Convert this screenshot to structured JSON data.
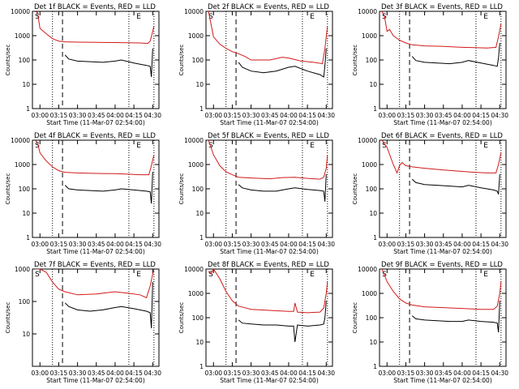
{
  "chart_data": [
    {
      "type": "line",
      "title": "Det 1f BLACK = Events, RED = LLD",
      "title_prefix": "Det 1f",
      "xlabel": "Start Time (11-Mar-07 02:54:00)",
      "ylabel": "Counts/sec",
      "x_ticks": [
        "03:00",
        "03:15",
        "03:30",
        "03:45",
        "04:00",
        "04:15",
        "04:30"
      ],
      "y_ticks": [
        "1",
        "10",
        "100",
        "1000",
        "10000"
      ],
      "y_scale": "log",
      "xlim": [
        "02:54",
        "04:35"
      ],
      "ylim": [
        1,
        10000
      ],
      "markers": [
        "S",
        "E"
      ],
      "markers_x": [
        "02:56",
        "04:17"
      ],
      "dotted_lines_x": [
        "03:10",
        "04:11",
        "04:31"
      ],
      "dashed_lines_x": [
        "03:18"
      ],
      "series": [
        {
          "color": "#d11a1a",
          "x": [
            "02:56",
            "02:58",
            "03:00",
            "03:05",
            "03:10",
            "03:15",
            "03:20",
            "03:30",
            "03:45",
            "04:00",
            "04:10",
            "04:20",
            "04:26",
            "04:28",
            "04:30",
            "04:31"
          ],
          "values": [
            10000,
            9000,
            2000,
            1200,
            750,
            600,
            560,
            540,
            530,
            520,
            510,
            500,
            480,
            600,
            1500,
            2500
          ]
        },
        {
          "color": "#000000",
          "x": [
            "03:20",
            "03:23",
            "03:30",
            "03:40",
            "03:50",
            "04:00",
            "04:05",
            "04:15",
            "04:25",
            "04:28",
            "04:29",
            "04:30"
          ],
          "values": [
            160,
            110,
            90,
            85,
            80,
            90,
            100,
            75,
            60,
            55,
            20,
            300
          ]
        }
      ]
    },
    {
      "type": "line",
      "title": "Det 2f BLACK = Events, RED = LLD",
      "title_prefix": "Det 2f",
      "xlabel": "Start Time (11-Mar-07 02:54:00)",
      "ylabel": "Counts/sec",
      "x_ticks": [
        "03:00",
        "03:15",
        "03:30",
        "03:45",
        "04:00",
        "04:15",
        "04:30"
      ],
      "y_ticks": [
        "1",
        "10",
        "100",
        "1000",
        "10000"
      ],
      "y_scale": "log",
      "xlim": [
        "02:54",
        "04:35"
      ],
      "ylim": [
        1,
        10000
      ],
      "markers": [
        "S",
        "E"
      ],
      "markers_x": [
        "02:56",
        "04:17"
      ],
      "dotted_lines_x": [
        "03:10",
        "04:11",
        "04:31"
      ],
      "dashed_lines_x": [
        "03:18"
      ],
      "series": [
        {
          "color": "#d11a1a",
          "x": [
            "02:56",
            "03:00",
            "03:05",
            "03:10",
            "03:15",
            "03:20",
            "03:25",
            "03:30",
            "03:45",
            "03:55",
            "04:00",
            "04:10",
            "04:20",
            "04:27",
            "04:29",
            "04:31"
          ],
          "values": [
            10000,
            900,
            450,
            300,
            220,
            180,
            140,
            100,
            100,
            130,
            120,
            90,
            80,
            70,
            300,
            2500
          ]
        },
        {
          "color": "#000000",
          "x": [
            "03:20",
            "03:23",
            "03:30",
            "03:40",
            "03:50",
            "04:00",
            "04:05",
            "04:15",
            "04:25",
            "04:28",
            "04:29",
            "04:30"
          ],
          "values": [
            80,
            50,
            35,
            30,
            35,
            50,
            55,
            35,
            25,
            20,
            60,
            300
          ]
        }
      ]
    },
    {
      "type": "line",
      "title": "Det 3f BLACK = Events, RED = LLD",
      "title_prefix": "Det 3f",
      "xlabel": "Start Time (11-Mar-07 02:54:00)",
      "ylabel": "Counts/sec",
      "x_ticks": [
        "03:00",
        "03:15",
        "03:30",
        "03:45",
        "04:00",
        "04:15",
        "04:30"
      ],
      "y_ticks": [
        "1",
        "10",
        "100",
        "1000",
        "10000"
      ],
      "y_scale": "log",
      "xlim": [
        "02:54",
        "04:35"
      ],
      "ylim": [
        1,
        10000
      ],
      "markers": [
        "S",
        "E"
      ],
      "markers_x": [
        "02:56",
        "04:17"
      ],
      "dotted_lines_x": [
        "03:10",
        "04:11",
        "04:31"
      ],
      "dashed_lines_x": [
        "03:18"
      ],
      "series": [
        {
          "color": "#d11a1a",
          "x": [
            "02:56",
            "02:58",
            "03:00",
            "03:02",
            "03:05",
            "03:10",
            "03:15",
            "03:20",
            "03:30",
            "03:45",
            "04:00",
            "04:10",
            "04:20",
            "04:27",
            "04:29",
            "04:31"
          ],
          "values": [
            10000,
            6000,
            1500,
            1800,
            1000,
            650,
            500,
            420,
            380,
            360,
            330,
            320,
            310,
            330,
            900,
            3000
          ]
        },
        {
          "color": "#000000",
          "x": [
            "03:20",
            "03:23",
            "03:30",
            "03:40",
            "03:50",
            "04:00",
            "04:05",
            "04:15",
            "04:25",
            "04:28",
            "04:29",
            "04:30"
          ],
          "values": [
            140,
            95,
            80,
            75,
            70,
            80,
            95,
            75,
            60,
            55,
            120,
            500
          ]
        }
      ]
    },
    {
      "type": "line",
      "title": "Det 4f BLACK = Events, RED = LLD",
      "title_prefix": "Det 4f",
      "xlabel": "Start Time (11-Mar-07 02:54:00)",
      "ylabel": "Counts/sec",
      "x_ticks": [
        "03:00",
        "03:15",
        "03:30",
        "03:45",
        "04:00",
        "04:15",
        "04:30"
      ],
      "y_ticks": [
        "1",
        "10",
        "100",
        "1000",
        "10000"
      ],
      "y_scale": "log",
      "xlim": [
        "02:54",
        "04:35"
      ],
      "ylim": [
        1,
        10000
      ],
      "markers": [
        "S",
        "E"
      ],
      "markers_x": [
        "02:56",
        "04:17"
      ],
      "dotted_lines_x": [
        "03:10",
        "04:11",
        "04:31"
      ],
      "dashed_lines_x": [
        "03:18"
      ],
      "series": [
        {
          "color": "#d11a1a",
          "x": [
            "02:56",
            "02:58",
            "03:00",
            "03:05",
            "03:10",
            "03:15",
            "03:20",
            "03:30",
            "03:45",
            "04:00",
            "04:10",
            "04:20",
            "04:27",
            "04:29",
            "04:31"
          ],
          "values": [
            10000,
            8000,
            3000,
            1400,
            800,
            560,
            480,
            450,
            430,
            420,
            400,
            380,
            380,
            900,
            2500
          ]
        },
        {
          "color": "#000000",
          "x": [
            "03:20",
            "03:23",
            "03:30",
            "03:40",
            "03:50",
            "04:00",
            "04:05",
            "04:15",
            "04:25",
            "04:28",
            "04:29",
            "04:30"
          ],
          "values": [
            140,
            100,
            90,
            85,
            80,
            90,
            100,
            90,
            80,
            75,
            25,
            500
          ]
        }
      ]
    },
    {
      "type": "line",
      "title": "Det 5f BLACK = Events, RED = LLD",
      "title_prefix": "Det 5f",
      "xlabel": "Start Time (11-Mar-07 02:54:00)",
      "ylabel": "Counts/sec",
      "x_ticks": [
        "03:00",
        "03:15",
        "03:30",
        "03:45",
        "04:00",
        "04:15",
        "04:30"
      ],
      "y_ticks": [
        "1",
        "10",
        "100",
        "1000",
        "10000"
      ],
      "y_scale": "log",
      "xlim": [
        "02:54",
        "04:35"
      ],
      "ylim": [
        1,
        10000
      ],
      "markers": [
        "S",
        "E"
      ],
      "markers_x": [
        "02:56",
        "04:17"
      ],
      "dotted_lines_x": [
        "03:10",
        "04:11",
        "04:31"
      ],
      "dashed_lines_x": [
        "03:18"
      ],
      "series": [
        {
          "color": "#d11a1a",
          "x": [
            "02:56",
            "03:00",
            "03:05",
            "03:10",
            "03:15",
            "03:20",
            "03:30",
            "03:45",
            "03:55",
            "04:05",
            "04:15",
            "04:25",
            "04:28",
            "04:30",
            "04:31"
          ],
          "values": [
            10000,
            2500,
            900,
            500,
            380,
            300,
            280,
            260,
            290,
            300,
            270,
            250,
            300,
            700,
            2500
          ]
        },
        {
          "color": "#000000",
          "x": [
            "03:20",
            "03:23",
            "03:30",
            "03:40",
            "03:50",
            "04:00",
            "04:05",
            "04:15",
            "04:25",
            "04:28",
            "04:29",
            "04:30"
          ],
          "values": [
            150,
            110,
            90,
            80,
            80,
            100,
            110,
            95,
            85,
            80,
            30,
            400
          ]
        }
      ]
    },
    {
      "type": "line",
      "title": "Det 6f BLACK = Events, RED = LLD",
      "title_prefix": "Det 6f",
      "xlabel": "Start Time (11-Mar-07 02:54:00)",
      "ylabel": "Counts/sec",
      "x_ticks": [
        "03:00",
        "03:15",
        "03:30",
        "03:45",
        "04:00",
        "04:15",
        "04:30"
      ],
      "y_ticks": [
        "1",
        "10",
        "100",
        "1000",
        "10000"
      ],
      "y_scale": "log",
      "xlim": [
        "02:54",
        "04:35"
      ],
      "ylim": [
        1,
        10000
      ],
      "markers": [
        "S",
        "E"
      ],
      "markers_x": [
        "02:56",
        "04:17"
      ],
      "dotted_lines_x": [
        "03:10",
        "04:11",
        "04:31"
      ],
      "dashed_lines_x": [
        "03:18"
      ],
      "series": [
        {
          "color": "#d11a1a",
          "x": [
            "02:56",
            "03:00",
            "03:05",
            "03:08",
            "03:10",
            "03:12",
            "03:15",
            "03:20",
            "03:30",
            "03:45",
            "04:00",
            "04:10",
            "04:20",
            "04:27",
            "04:29",
            "04:31"
          ],
          "values": [
            10000,
            5000,
            1000,
            450,
            900,
            1200,
            900,
            800,
            700,
            600,
            520,
            480,
            450,
            450,
            1000,
            3000
          ]
        },
        {
          "color": "#000000",
          "x": [
            "03:20",
            "03:23",
            "03:30",
            "03:40",
            "03:50",
            "04:00",
            "04:05",
            "04:15",
            "04:25",
            "04:28",
            "04:29",
            "04:30"
          ],
          "values": [
            250,
            180,
            150,
            140,
            130,
            120,
            140,
            110,
            90,
            80,
            60,
            400
          ]
        }
      ]
    },
    {
      "type": "line",
      "title": "Det 7f BLACK = Events, RED = LLD",
      "title_prefix": "Det 7f",
      "xlabel": "Start Time (11-Mar-07 02:54:00)",
      "ylabel": "Counts/sec",
      "x_ticks": [
        "03:00",
        "03:15",
        "03:30",
        "03:45",
        "04:00",
        "04:15",
        "04:30"
      ],
      "y_ticks": [
        "10",
        "100",
        "1000"
      ],
      "y_scale": "log",
      "xlim": [
        "02:54",
        "04:35"
      ],
      "ylim": [
        1,
        1000
      ],
      "markers": [
        "S",
        "E"
      ],
      "markers_x": [
        "02:56",
        "04:17"
      ],
      "dotted_lines_x": [
        "03:10",
        "04:11",
        "04:31"
      ],
      "dashed_lines_x": [
        "03:18"
      ],
      "series": [
        {
          "color": "#d11a1a",
          "x": [
            "02:56",
            "03:00",
            "03:05",
            "03:10",
            "03:15",
            "03:20",
            "03:30",
            "03:45",
            "04:00",
            "04:10",
            "04:20",
            "04:25",
            "04:28",
            "04:30",
            "04:31"
          ],
          "values": [
            1000,
            1000,
            800,
            400,
            240,
            200,
            160,
            170,
            200,
            180,
            160,
            130,
            300,
            700,
            1000
          ]
        },
        {
          "color": "#000000",
          "x": [
            "03:20",
            "03:23",
            "03:30",
            "03:40",
            "03:50",
            "04:00",
            "04:05",
            "04:15",
            "04:25",
            "04:28",
            "04:29",
            "04:30"
          ],
          "values": [
            90,
            70,
            55,
            50,
            55,
            65,
            70,
            60,
            50,
            45,
            15,
            400
          ]
        }
      ]
    },
    {
      "type": "line",
      "title": "Det 8f BLACK = Events, RED = LLD",
      "title_prefix": "Det 8f",
      "xlabel": "Start Time (11-Mar-07 02:54:00)",
      "ylabel": "Counts/sec",
      "x_ticks": [
        "03:00",
        "03:15",
        "03:30",
        "03:45",
        "04:00",
        "04:15",
        "04:30"
      ],
      "y_ticks": [
        "1",
        "10",
        "100",
        "1000",
        "10000"
      ],
      "y_scale": "log",
      "xlim": [
        "02:54",
        "04:35"
      ],
      "ylim": [
        1,
        10000
      ],
      "markers": [
        "S",
        "E"
      ],
      "markers_x": [
        "02:56",
        "04:17"
      ],
      "dotted_lines_x": [
        "03:10",
        "04:11",
        "04:31"
      ],
      "dashed_lines_x": [
        "03:18"
      ],
      "series": [
        {
          "color": "#d11a1a",
          "x": [
            "02:56",
            "02:58",
            "03:00",
            "03:05",
            "03:10",
            "03:15",
            "03:20",
            "03:30",
            "03:45",
            "04:00",
            "04:04",
            "04:05",
            "04:07",
            "04:15",
            "04:25",
            "04:28",
            "04:30",
            "04:31"
          ],
          "values": [
            8000,
            6500,
            10000,
            4000,
            1200,
            500,
            300,
            220,
            200,
            180,
            180,
            400,
            170,
            160,
            170,
            250,
            1000,
            3000
          ]
        },
        {
          "color": "#000000",
          "x": [
            "03:20",
            "03:23",
            "03:30",
            "03:40",
            "03:50",
            "04:00",
            "04:04",
            "04:05",
            "04:07",
            "04:15",
            "04:25",
            "04:28",
            "04:29",
            "04:30"
          ],
          "values": [
            80,
            60,
            55,
            50,
            50,
            45,
            45,
            10,
            50,
            45,
            50,
            55,
            100,
            500
          ]
        }
      ]
    },
    {
      "type": "line",
      "title": "Det 9f BLACK = Events, RED = LLD",
      "title_prefix": "Det 9f",
      "xlabel": "Start Time (11-Mar-07 02:54:00)",
      "ylabel": "Counts/sec",
      "x_ticks": [
        "03:00",
        "03:15",
        "03:30",
        "03:45",
        "04:00",
        "04:15",
        "04:30"
      ],
      "y_ticks": [
        "1",
        "10",
        "100",
        "1000",
        "10000"
      ],
      "y_scale": "log",
      "xlim": [
        "02:54",
        "04:35"
      ],
      "ylim": [
        1,
        10000
      ],
      "markers": [
        "S",
        "E"
      ],
      "markers_x": [
        "02:56",
        "04:17"
      ],
      "dotted_lines_x": [
        "03:10",
        "04:11",
        "04:31"
      ],
      "dashed_lines_x": [
        "03:18"
      ],
      "series": [
        {
          "color": "#d11a1a",
          "x": [
            "02:56",
            "03:00",
            "03:05",
            "03:10",
            "03:15",
            "03:20",
            "03:30",
            "03:45",
            "04:00",
            "04:15",
            "04:25",
            "04:28",
            "04:30",
            "04:31"
          ],
          "values": [
            10000,
            3000,
            1200,
            600,
            400,
            330,
            280,
            260,
            240,
            220,
            220,
            300,
            1000,
            3000
          ]
        },
        {
          "color": "#000000",
          "x": [
            "03:20",
            "03:23",
            "03:30",
            "03:40",
            "03:50",
            "04:00",
            "04:05",
            "04:15",
            "04:25",
            "04:28",
            "04:29",
            "04:30"
          ],
          "values": [
            120,
            90,
            80,
            75,
            70,
            70,
            80,
            70,
            65,
            60,
            25,
            500
          ]
        }
      ]
    }
  ]
}
